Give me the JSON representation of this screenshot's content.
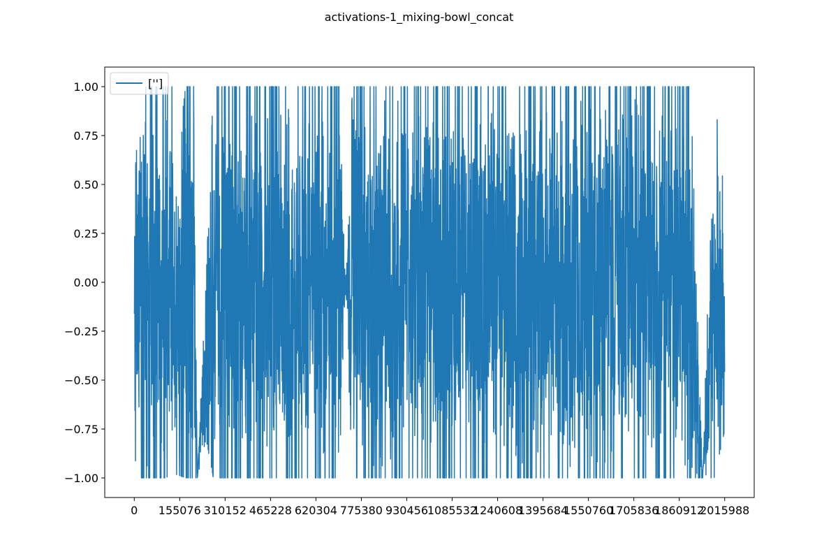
{
  "chart_data": {
    "type": "line",
    "title": "activations-1_mixing-bowl_concat",
    "xlabel": "",
    "ylabel": "",
    "xlim": [
      -100800,
      2116800
    ],
    "ylim": [
      -1.1,
      1.1
    ],
    "x_ticks": [
      0,
      155076,
      310152,
      465228,
      620304,
      775380,
      930456,
      1085532,
      1240608,
      1395684,
      1550760,
      1705836,
      1860912,
      2015988
    ],
    "x_tick_labels": [
      "0",
      "155076",
      "310152",
      "465228",
      "620304",
      "775380",
      "930456",
      "1085532",
      "1240608",
      "1395684",
      "1550760",
      "1705836",
      "1860912",
      "2015988"
    ],
    "y_ticks": [
      -1.0,
      -0.75,
      -0.5,
      -0.25,
      0.0,
      0.25,
      0.5,
      0.75,
      1.0
    ],
    "y_tick_labels": [
      "−1.00",
      "−0.75",
      "−0.50",
      "−0.25",
      "0.00",
      "0.25",
      "0.50",
      "0.75",
      "1.00"
    ],
    "legend": {
      "position": "top-left",
      "entries": [
        "['']"
      ]
    },
    "grid": false,
    "series": [
      {
        "name": "['']",
        "color": "#1f77b4",
        "x_range": [
          0,
          2015988
        ],
        "value_range": [
          -1.0,
          1.0
        ],
        "envelope": [
          {
            "x": 0,
            "min": -0.89,
            "max": 0.47
          },
          {
            "x": 20000,
            "min": -1.0,
            "max": 1.0
          },
          {
            "x": 60000,
            "min": -1.0,
            "max": 1.0
          },
          {
            "x": 110000,
            "min": -1.0,
            "max": 1.0
          },
          {
            "x": 130000,
            "min": -0.95,
            "max": 1.0
          },
          {
            "x": 140000,
            "min": -0.98,
            "max": 0.55
          },
          {
            "x": 175000,
            "min": -1.0,
            "max": 1.0
          },
          {
            "x": 205000,
            "min": -1.0,
            "max": 1.0
          },
          {
            "x": 215000,
            "min": -1.0,
            "max": -1.0
          },
          {
            "x": 245000,
            "min": -0.8,
            "max": 0.0
          },
          {
            "x": 270000,
            "min": -1.0,
            "max": 1.0
          },
          {
            "x": 360000,
            "min": -1.0,
            "max": 1.0
          },
          {
            "x": 450000,
            "min": -1.0,
            "max": 1.0
          },
          {
            "x": 540000,
            "min": -1.0,
            "max": 1.0
          },
          {
            "x": 630000,
            "min": -1.0,
            "max": 1.0
          },
          {
            "x": 700000,
            "min": -1.0,
            "max": 1.0
          },
          {
            "x": 720000,
            "min": 0.0,
            "max": 0.0
          },
          {
            "x": 745000,
            "min": -1.0,
            "max": 1.0
          },
          {
            "x": 830000,
            "min": -1.0,
            "max": 1.0
          },
          {
            "x": 960000,
            "min": -1.0,
            "max": 1.0
          },
          {
            "x": 1100000,
            "min": -1.0,
            "max": 1.0
          },
          {
            "x": 1250000,
            "min": -1.0,
            "max": 1.0
          },
          {
            "x": 1400000,
            "min": -1.0,
            "max": 1.0
          },
          {
            "x": 1550000,
            "min": -1.0,
            "max": 1.0
          },
          {
            "x": 1650000,
            "min": -1.0,
            "max": 1.0
          },
          {
            "x": 1700000,
            "min": -1.0,
            "max": 1.0
          },
          {
            "x": 1800000,
            "min": -1.0,
            "max": 1.0
          },
          {
            "x": 1900000,
            "min": -1.0,
            "max": 1.0
          },
          {
            "x": 1940000,
            "min": -1.0,
            "max": -1.0
          },
          {
            "x": 1980000,
            "min": -1.0,
            "max": 1.0
          },
          {
            "x": 2015988,
            "min": -0.76,
            "max": 0.42
          }
        ]
      }
    ]
  }
}
